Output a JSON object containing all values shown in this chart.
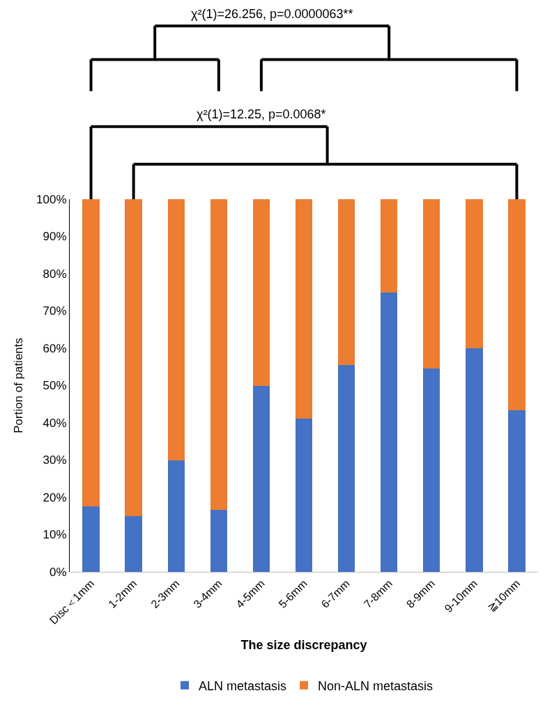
{
  "chart_data": {
    "type": "bar",
    "stacked": true,
    "xlabel": "The size discrepancy",
    "ylabel": "Portion of patients",
    "categories": [
      "Disc＜1mm",
      "1-2mm",
      "2-3mm",
      "3-4mm",
      "4-5mm",
      "5-6mm",
      "6-7mm",
      "7-8mm",
      "8-9mm",
      "9-10mm",
      "≧10mm"
    ],
    "series": [
      {
        "name": "ALN metastasis",
        "color": "#4472c4",
        "values": [
          17.6,
          15,
          30,
          16.7,
          50,
          41.2,
          55.6,
          75,
          54.5,
          60,
          43.3
        ]
      },
      {
        "name": "Non-ALN metastasis",
        "color": "#ed7d31",
        "values": [
          82.4,
          85,
          70,
          83.3,
          50,
          58.8,
          44.4,
          25,
          45.5,
          40,
          56.7
        ]
      }
    ],
    "ylim": [
      0,
      100
    ],
    "yticks": [
      {
        "value": 0,
        "label": "0%"
      },
      {
        "value": 10,
        "label": "10%"
      },
      {
        "value": 20,
        "label": "20%"
      },
      {
        "value": 30,
        "label": "30%"
      },
      {
        "value": 40,
        "label": "40%"
      },
      {
        "value": 50,
        "label": "50%"
      },
      {
        "value": 60,
        "label": "60%"
      },
      {
        "value": 70,
        "label": "70%"
      },
      {
        "value": 80,
        "label": "80%"
      },
      {
        "value": 90,
        "label": "90%"
      },
      {
        "value": 100,
        "label": "100%"
      }
    ],
    "legend": "bottom",
    "annotations": [
      "χ²(1)=26.256, p=0.0000063**",
      "χ²(1)=12.25, p=0.0068*"
    ]
  }
}
